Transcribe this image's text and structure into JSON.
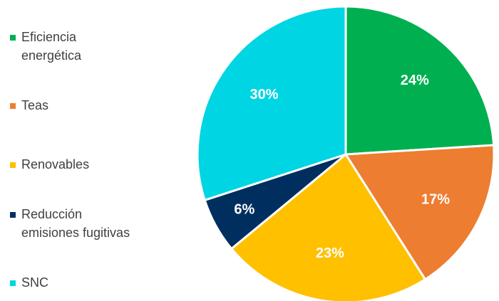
{
  "chart_data": {
    "type": "pie",
    "categories": [
      "Eficiencia energética",
      "Teas",
      "Renovables",
      "Reducción emisiones fugitivas",
      "SNC"
    ],
    "values": [
      24,
      17,
      23,
      6,
      30
    ],
    "colors": [
      "#00b050",
      "#ed7d31",
      "#ffc000",
      "#002f5f",
      "#00d5e3"
    ],
    "legend": "left"
  }
}
